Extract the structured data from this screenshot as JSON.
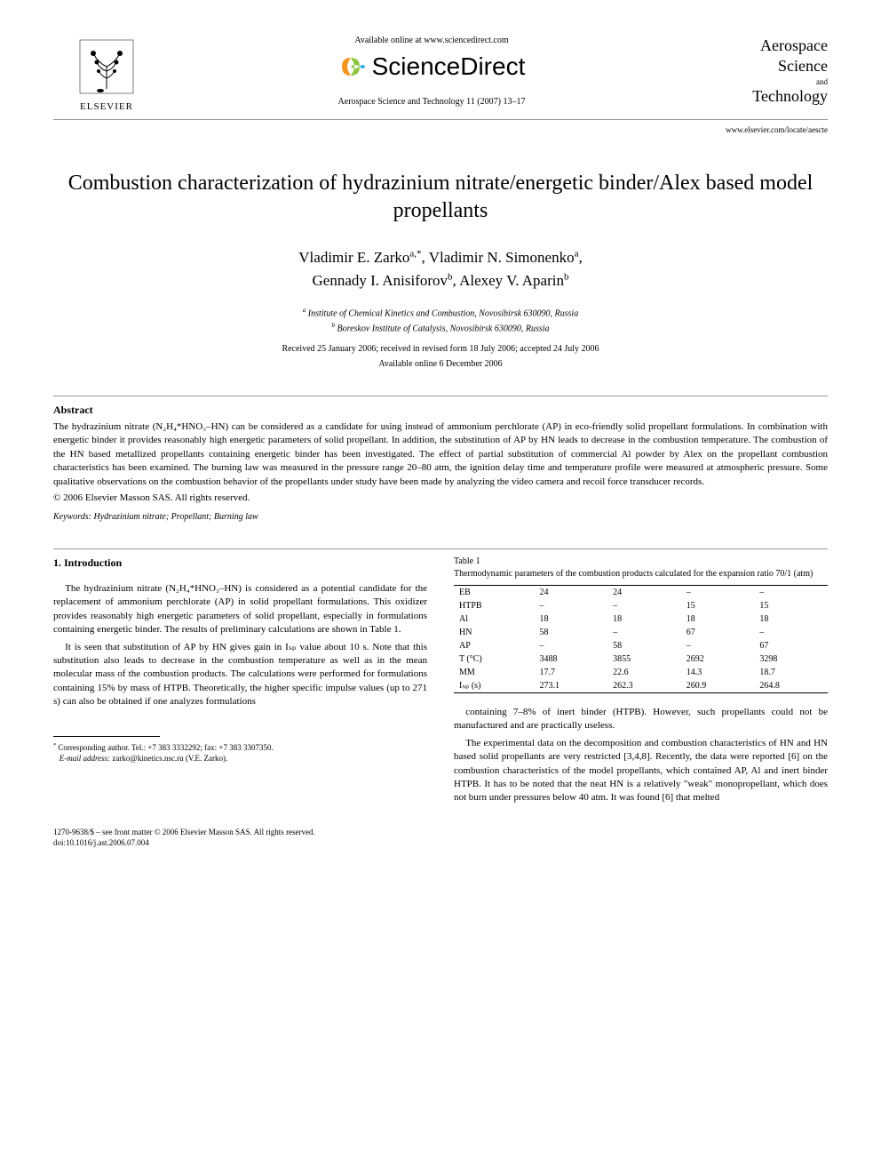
{
  "header": {
    "available_text": "Available online at www.sciencedirect.com",
    "sd_label": "ScienceDirect",
    "elsevier_label": "ELSEVIER",
    "citation": "Aerospace Science and Technology 11 (2007) 13–17",
    "journal_line1": "Aerospace",
    "journal_line2": "Science",
    "journal_and": "and",
    "journal_line3": "Technology",
    "journal_url": "www.elsevier.com/locate/aescte"
  },
  "title": "Combustion characterization of hydrazinium nitrate/energetic binder/Alex based model propellants",
  "authors_line1": "Vladimir E. Zarko",
  "authors_sup1": "a,*",
  "authors_sep1": ", Vladimir N. Simonenko",
  "authors_sup2": "a",
  "authors_sep2": ",",
  "authors_line2a": "Gennady I. Anisiforov",
  "authors_sup3": "b",
  "authors_sep3": ", Alexey V. Aparin",
  "authors_sup4": "b",
  "affil_a": "Institute of Chemical Kinetics and Combustion, Novosibirsk 630090, Russia",
  "affil_b": "Boreskov Institute of Catalysis, Novosibirsk 630090, Russia",
  "dates": "Received 25 January 2006; received in revised form 18 July 2006; accepted 24 July 2006",
  "available": "Available online 6 December 2006",
  "abstract_heading": "Abstract",
  "abstract_text": "The hydrazinium nitrate (N₂H₄*HNO₃–HN) can be considered as a candidate for using instead of ammonium perchlorate (AP) in eco-friendly solid propellant formulations. In combination with energetic binder it provides reasonably high energetic parameters of solid propellant. In addition, the substitution of AP by HN leads to decrease in the combustion temperature. The combustion of the HN based metallized propellants containing energetic binder has been investigated. The effect of partial substitution of commercial Al powder by Alex on the propellant combustion characteristics has been examined. The burning law was measured in the pressure range 20–80 atm, the ignition delay time and temperature profile were measured at atmospheric pressure. Some qualitative observations on the combustion behavior of the propellants under study have been made by analyzing the video camera and recoil force transducer records.",
  "copyright": "© 2006 Elsevier Masson SAS. All rights reserved.",
  "keywords_label": "Keywords:",
  "keywords": " Hydrazinium nitrate; Propellant; Burning law",
  "section1_heading": "1. Introduction",
  "para1": "The hydrazinium nitrate (N₂H₄*HNO₃–HN) is considered as a potential candidate for the replacement of ammonium perchlorate (AP) in solid propellant formulations. This oxidizer provides reasonably high energetic parameters of solid propellant, especially in formulations containing energetic binder. The results of preliminary calculations are shown in Table 1.",
  "para2": "It is seen that substitution of AP by HN gives gain in Iₛₚ value about 10 s. Note that this substitution also leads to decrease in the combustion temperature as well as in the mean molecular mass of the combustion products. The calculations were performed for formulations containing 15% by mass of HTPB. Theoretically, the higher specific impulse values (up to 271 s) can also be obtained if one analyzes formulations",
  "para3": "containing 7–8% of inert binder (HTPB). However, such propellants could not be manufactured and are practically useless.",
  "para4": "The experimental data on the decomposition and combustion characteristics of HN and HN based solid propellants are very restricted [3,4,8]. Recently, the data were reported [6] on the combustion characteristics of the model propellants, which contained AP, Al and inert binder HTPB. It has to be noted that the neat HN is a relatively \"weak\" monopropellant, which does not burn under pressures below 40 atm. It was found [6] that melted",
  "table1": {
    "label": "Table 1",
    "caption": "Thermodynamic parameters of the combustion products calculated for the expansion ratio 70/1 (atm)",
    "rows": [
      [
        "EB",
        "24",
        "24",
        "–",
        "–"
      ],
      [
        "HTPB",
        "–",
        "–",
        "15",
        "15"
      ],
      [
        "Al",
        "18",
        "18",
        "18",
        "18"
      ],
      [
        "HN",
        "58",
        "–",
        "67",
        "–"
      ],
      [
        "AP",
        "–",
        "58",
        "–",
        "67"
      ],
      [
        "T (°C)",
        "3488",
        "3855",
        "2692",
        "3298"
      ],
      [
        "MM",
        "17.7",
        "22.6",
        "14.3",
        "18.7"
      ],
      [
        "Iₛₚ (s)",
        "273.1",
        "262.3",
        "260.9",
        "264.8"
      ]
    ],
    "col_count": 5
  },
  "footnote_corr": "Corresponding author. Tel.: +7 383 3332292; fax: +7 383 3307350.",
  "footnote_email_label": "E-mail address:",
  "footnote_email": " zarko@kinetics.nsc.ru (V.E. Zarko).",
  "doi_line1": "1270-9638/$ – see front matter  © 2006 Elsevier Masson SAS. All rights reserved.",
  "doi_line2": "doi:10.1016/j.ast.2006.07.004",
  "colors": {
    "text": "#000000",
    "bg": "#ffffff",
    "rule": "#999999",
    "sd_orange": "#f7941e",
    "sd_green": "#8cc63f",
    "sd_blue": "#27aae1"
  }
}
